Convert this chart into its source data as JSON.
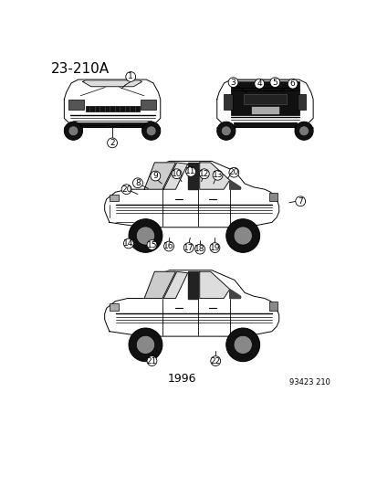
{
  "title": "23-210A",
  "bottom_left_label": "1996",
  "bottom_right_label": "93423 210",
  "bg_color": "#ffffff",
  "line_color": "#000000",
  "title_fontsize": 11,
  "label_fontsize": 8,
  "callout_fontsize": 6.5
}
